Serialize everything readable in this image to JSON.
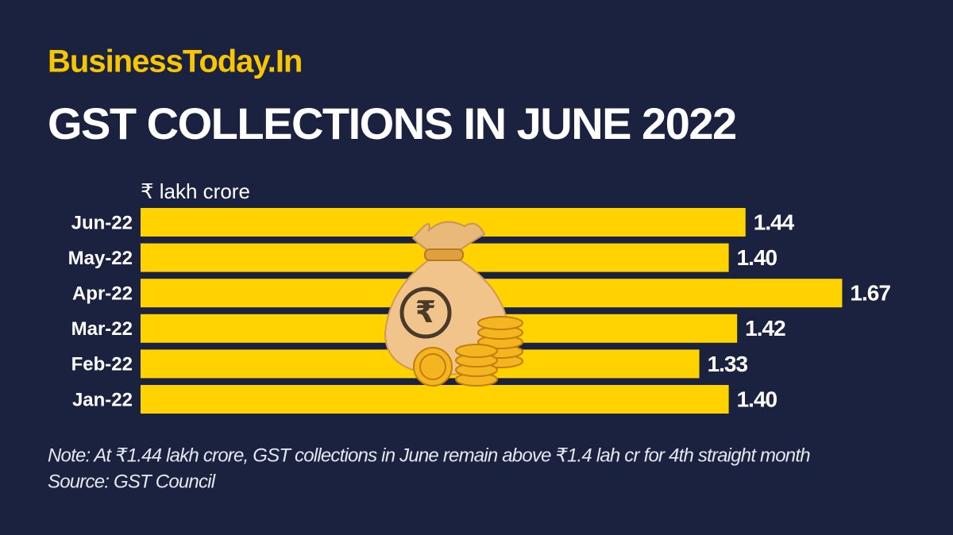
{
  "brand": "BusinessToday.In",
  "chart_data": {
    "type": "bar",
    "orientation": "horizontal",
    "title": "GST COLLECTIONS IN JUNE 2022",
    "unit_label": "₹ lakh crore",
    "categories": [
      "Jun-22",
      "May-22",
      "Apr-22",
      "Mar-22",
      "Feb-22",
      "Jan-22"
    ],
    "values": [
      1.44,
      1.4,
      1.67,
      1.42,
      1.33,
      1.4
    ],
    "value_labels": [
      "1.44",
      "1.40",
      "1.67",
      "1.42",
      "1.33",
      "1.40"
    ],
    "color": "#ffd200"
  },
  "note": "Note: At ₹1.44 lakh crore, GST collections in June remain above ₹1.4 lah cr for 4th straight month",
  "source": "Source: GST Council"
}
